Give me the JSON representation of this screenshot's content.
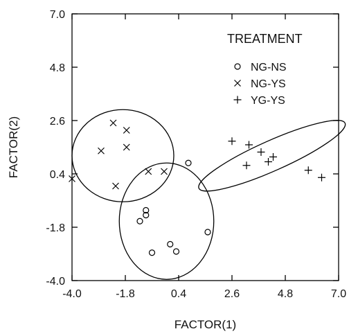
{
  "chart_data": {
    "type": "scatter",
    "xlabel": "FACTOR(1)",
    "ylabel": "FACTOR(2)",
    "xlim": [
      -4.0,
      7.0
    ],
    "ylim": [
      -4.0,
      7.0
    ],
    "xticks": [
      "-4.0",
      "-1.8",
      "0.4",
      "2.6",
      "4.8",
      "7.0"
    ],
    "yticks": [
      "-4.0",
      "-1.8",
      "0.4",
      "2.6",
      "4.8",
      "7.0"
    ],
    "grid": false,
    "legend": {
      "title": "TREATMENT",
      "placement": "top-right"
    },
    "series": [
      {
        "name": "NG-NS",
        "marker": "circle",
        "points": [
          [
            0.8,
            0.85
          ],
          [
            -1.2,
            -1.55
          ],
          [
            -0.95,
            -1.3
          ],
          [
            -0.95,
            -1.1
          ],
          [
            -0.7,
            -2.85
          ],
          [
            0.05,
            -2.5
          ],
          [
            0.3,
            -2.8
          ],
          [
            1.6,
            -2.0
          ]
        ]
      },
      {
        "name": "NG-YS",
        "marker": "x",
        "points": [
          [
            -4.0,
            0.2
          ],
          [
            -2.8,
            1.35
          ],
          [
            -2.3,
            2.5
          ],
          [
            -2.2,
            -0.1
          ],
          [
            -1.75,
            2.2
          ],
          [
            -1.75,
            1.5
          ],
          [
            -0.85,
            0.5
          ],
          [
            -0.2,
            0.5
          ]
        ]
      },
      {
        "name": "YG-YS",
        "marker": "plus",
        "points": [
          [
            2.6,
            1.75
          ],
          [
            3.2,
            0.75
          ],
          [
            3.3,
            1.6
          ],
          [
            3.8,
            1.3
          ],
          [
            4.1,
            0.9
          ],
          [
            4.3,
            1.1
          ],
          [
            5.75,
            0.55
          ],
          [
            6.3,
            0.25
          ]
        ]
      }
    ],
    "ellipses": [
      {
        "series": "NG-NS",
        "center": [
          -0.1,
          -1.55
        ],
        "rx": 1.95,
        "ry": 2.4,
        "angle": 0
      },
      {
        "series": "NG-YS",
        "center": [
          -1.9,
          1.15
        ],
        "rx": 2.1,
        "ry": 1.9,
        "angle": 0
      },
      {
        "series": "YG-YS",
        "center": [
          4.25,
          1.15
        ],
        "rx": 3.3,
        "ry": 0.62,
        "angle": -24
      }
    ]
  }
}
